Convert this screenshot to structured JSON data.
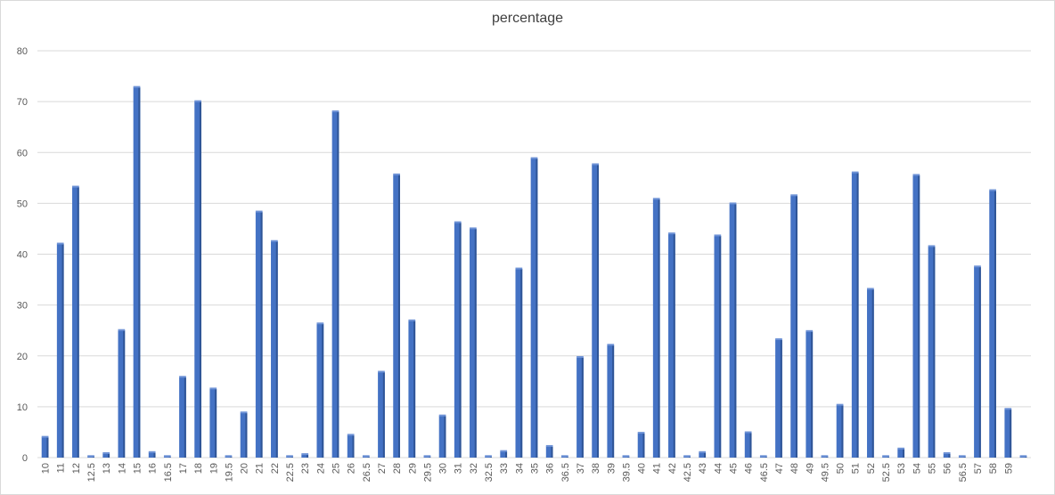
{
  "chart_data": {
    "type": "bar",
    "title": "percentage",
    "xlabel": "",
    "ylabel": "",
    "ylim": [
      0,
      80
    ],
    "yticks": [
      0,
      10,
      20,
      30,
      40,
      50,
      60,
      70,
      80
    ],
    "grid": true,
    "legend": "none",
    "bar_color": "#4472C4",
    "categories": [
      "10",
      "11",
      "12",
      "12.5",
      "13",
      "14",
      "15",
      "16",
      "16.5",
      "17",
      "18",
      "19",
      "19.5",
      "20",
      "21",
      "22",
      "22.5",
      "23",
      "24",
      "25",
      "26",
      "26.5",
      "27",
      "28",
      "29",
      "29.5",
      "30",
      "31",
      "32",
      "32.5",
      "33",
      "34",
      "35",
      "36",
      "36.5",
      "37",
      "38",
      "39",
      "39.5",
      "40",
      "41",
      "42",
      "42.5",
      "43",
      "44",
      "45",
      "46",
      "46.5",
      "47",
      "48",
      "49",
      "49.5",
      "50",
      "51",
      "52",
      "52.5",
      "53",
      "54",
      "55",
      "56",
      "56.5",
      "57",
      "58",
      "59",
      ""
    ],
    "values": [
      4,
      42,
      53.2,
      0,
      0.8,
      25,
      72.8,
      1,
      0,
      15.8,
      70,
      13.5,
      0,
      8.8,
      48.3,
      42.5,
      0,
      0.6,
      26.3,
      68,
      4.4,
      0,
      16.8,
      55.6,
      26.9,
      0,
      8.2,
      46.2,
      45,
      0,
      1.2,
      37.1,
      58.8,
      2.2,
      0,
      19.7,
      57.6,
      22.1,
      0,
      4.8,
      50.8,
      44,
      0,
      1,
      43.6,
      49.9,
      4.9,
      0,
      23.2,
      51.5,
      24.8,
      0,
      10.3,
      56,
      33.1,
      0,
      1.7,
      55.5,
      41.5,
      0.8,
      0,
      37.5,
      52.5,
      9.5,
      0
    ]
  }
}
